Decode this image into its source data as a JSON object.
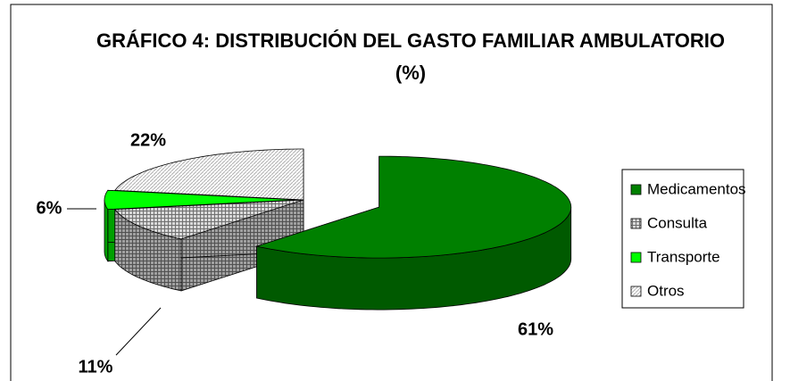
{
  "chart_data": {
    "type": "pie3d",
    "title": "GRÁFICO 4:  DISTRIBUCIÓN DEL GASTO FAMILIAR AMBULATORIO (%)",
    "categories": [
      "Medicamentos",
      "Consulta",
      "Transporte",
      "Otros"
    ],
    "values": [
      61,
      11,
      6,
      22
    ],
    "value_labels": [
      "61%",
      "11%",
      "6%",
      "22%"
    ],
    "colors": [
      "#008000",
      "#a0a0a0",
      "#00ff00",
      "#e8e8e8"
    ],
    "legend": "right"
  }
}
